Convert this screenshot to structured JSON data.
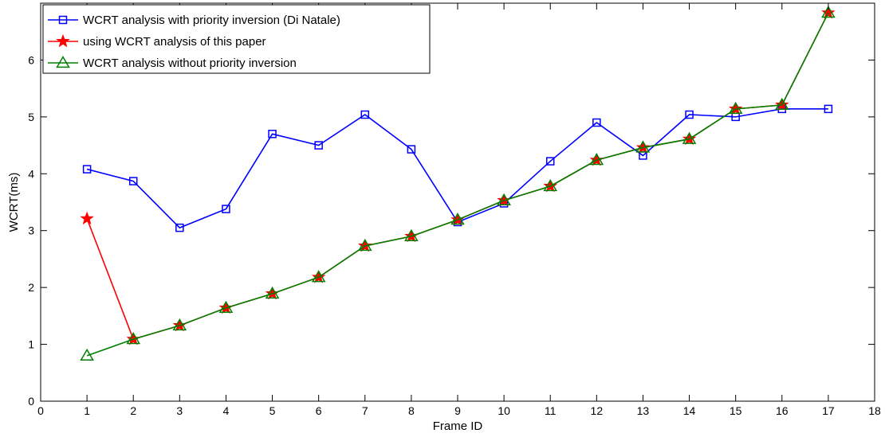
{
  "chart_data": {
    "type": "line",
    "title": "",
    "xlabel": "Frame ID",
    "ylabel": "WCRT(ms)",
    "xlim": [
      0,
      18
    ],
    "ylim": [
      0,
      7
    ],
    "xticks": [
      0,
      1,
      2,
      3,
      4,
      5,
      6,
      7,
      8,
      9,
      10,
      11,
      12,
      13,
      14,
      15,
      16,
      17,
      18
    ],
    "yticks": [
      0,
      1,
      2,
      3,
      4,
      5,
      6
    ],
    "grid": false,
    "legend": "top-left",
    "x": [
      1,
      2,
      3,
      4,
      5,
      6,
      7,
      8,
      9,
      10,
      11,
      12,
      13,
      14,
      15,
      16,
      17
    ],
    "series": [
      {
        "name": "WCRT analysis with priority inversion (Di Natale)",
        "color": "#0000ff",
        "marker": "square",
        "values": [
          4.08,
          3.87,
          3.05,
          3.38,
          4.7,
          4.5,
          5.04,
          4.43,
          3.15,
          3.48,
          4.22,
          4.9,
          4.32,
          5.04,
          5.0,
          5.14,
          5.14
        ]
      },
      {
        "name": "using WCRT analysis of this paper",
        "color": "#ff0000",
        "marker": "star",
        "values": [
          3.21,
          1.09,
          1.33,
          1.64,
          1.89,
          2.18,
          2.73,
          2.9,
          3.19,
          3.53,
          3.78,
          4.24,
          4.46,
          4.61,
          5.14,
          5.21,
          6.83
        ]
      },
      {
        "name": "WCRT analysis without priority inversion",
        "color": "#008000",
        "marker": "triangle",
        "values": [
          0.8,
          1.09,
          1.33,
          1.64,
          1.89,
          2.18,
          2.73,
          2.9,
          3.19,
          3.53,
          3.78,
          4.24,
          4.46,
          4.61,
          5.14,
          5.21,
          6.83
        ]
      }
    ]
  }
}
